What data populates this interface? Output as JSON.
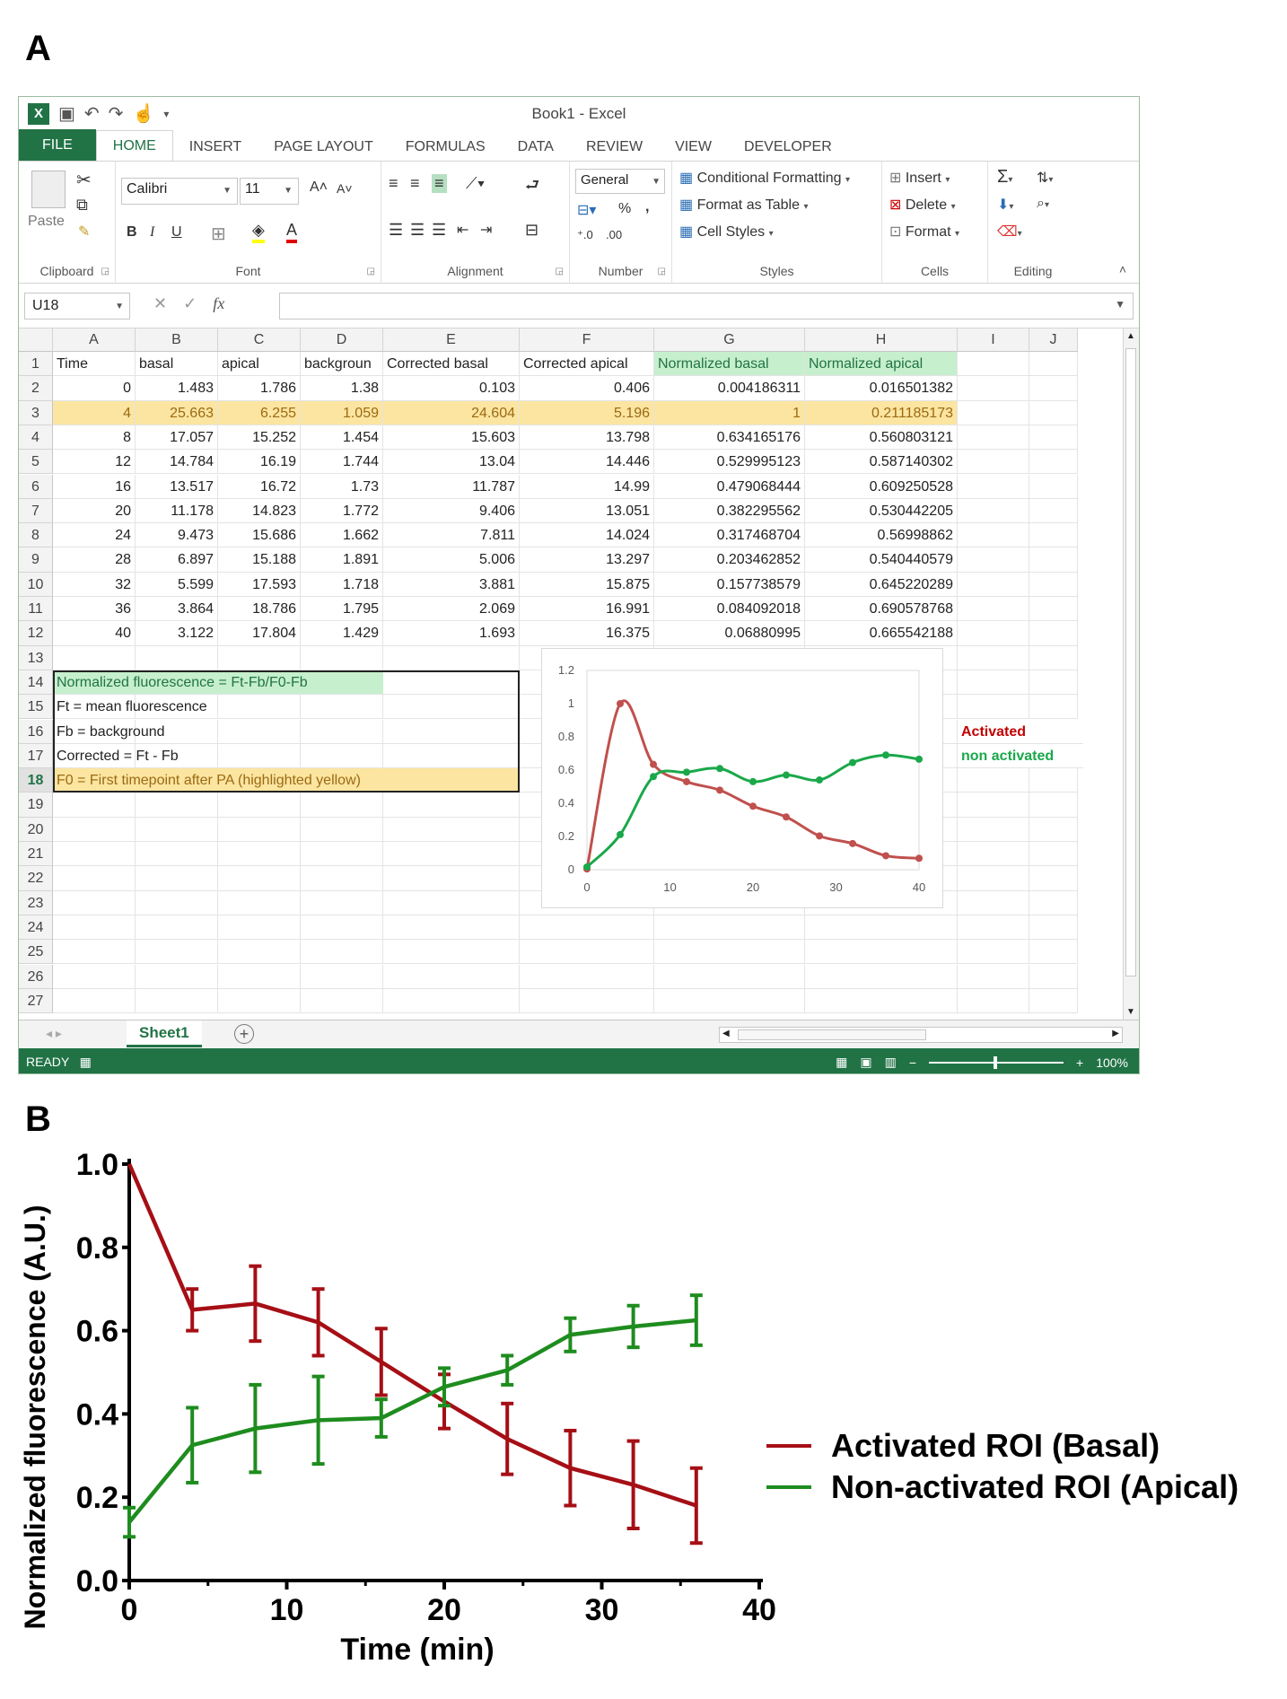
{
  "panel_labels": {
    "a": "A",
    "b": "B"
  },
  "window": {
    "title": "Book1 - Excel",
    "tabs": [
      "FILE",
      "HOME",
      "INSERT",
      "PAGE LAYOUT",
      "FORMULAS",
      "DATA",
      "REVIEW",
      "VIEW",
      "DEVELOPER"
    ],
    "active_tab": "HOME"
  },
  "ribbon": {
    "clipboard": {
      "label": "Clipboard",
      "paste": "Paste"
    },
    "font": {
      "label": "Font",
      "name": "Calibri",
      "size": "11",
      "bold": "B",
      "italic": "I",
      "underline": "U"
    },
    "alignment": {
      "label": "Alignment"
    },
    "number": {
      "label": "Number",
      "format": "General",
      "percent": "%"
    },
    "styles": {
      "label": "Styles",
      "conditional": "Conditional Formatting",
      "format_table": "Format as Table",
      "cell_styles": "Cell Styles"
    },
    "cells": {
      "label": "Cells",
      "insert": "Insert",
      "delete": "Delete",
      "format": "Format"
    },
    "editing": {
      "label": "Editing"
    }
  },
  "formula_bar": {
    "name_box": "U18",
    "fx": "fx",
    "value": ""
  },
  "sheet": {
    "columns": [
      "A",
      "B",
      "C",
      "D",
      "E",
      "F",
      "G",
      "H",
      "I",
      "J"
    ],
    "row_numbers": [
      "1",
      "2",
      "3",
      "4",
      "5",
      "6",
      "7",
      "8",
      "9",
      "10",
      "11",
      "12",
      "13",
      "14",
      "15",
      "16",
      "17",
      "18",
      "19",
      "20",
      "21",
      "22",
      "23",
      "24",
      "25",
      "26",
      "27"
    ],
    "headers": [
      "Time",
      "basal",
      "apical",
      "backgroun",
      "Corrected basal",
      "Corrected apical",
      "Normalized basal",
      "Normalized apical"
    ],
    "rows": [
      [
        "0",
        "1.483",
        "1.786",
        "1.38",
        "0.103",
        "0.406",
        "0.004186311",
        "0.016501382"
      ],
      [
        "4",
        "25.663",
        "6.255",
        "1.059",
        "24.604",
        "5.196",
        "1",
        "0.211185173"
      ],
      [
        "8",
        "17.057",
        "15.252",
        "1.454",
        "15.603",
        "13.798",
        "0.634165176",
        "0.560803121"
      ],
      [
        "12",
        "14.784",
        "16.19",
        "1.744",
        "13.04",
        "14.446",
        "0.529995123",
        "0.587140302"
      ],
      [
        "16",
        "13.517",
        "16.72",
        "1.73",
        "11.787",
        "14.99",
        "0.479068444",
        "0.609250528"
      ],
      [
        "20",
        "11.178",
        "14.823",
        "1.772",
        "9.406",
        "13.051",
        "0.382295562",
        "0.530442205"
      ],
      [
        "24",
        "9.473",
        "15.686",
        "1.662",
        "7.811",
        "14.024",
        "0.317468704",
        "0.56998862"
      ],
      [
        "28",
        "6.897",
        "15.188",
        "1.891",
        "5.006",
        "13.297",
        "0.203462852",
        "0.540440579"
      ],
      [
        "32",
        "5.599",
        "17.593",
        "1.718",
        "3.881",
        "15.875",
        "0.157738579",
        "0.645220289"
      ],
      [
        "36",
        "3.864",
        "18.786",
        "1.795",
        "2.069",
        "16.991",
        "0.084092018",
        "0.690578768"
      ],
      [
        "40",
        "3.122",
        "17.804",
        "1.429",
        "1.693",
        "16.375",
        "0.06880995",
        "0.665542188"
      ]
    ],
    "notes": [
      "Normalized fluorescence = Ft-Fb/F0-Fb",
      "Ft = mean fluorescence",
      "Fb = background",
      "Corrected = Ft - Fb",
      "F0 = First timepoint after PA (highlighted yellow)"
    ],
    "legend_activated": "Activated",
    "legend_non_activated": "non activated",
    "sheet_tab": "Sheet1",
    "status": "READY",
    "zoom": "100%"
  },
  "chart_data": [
    {
      "type": "line",
      "x": [
        0,
        4,
        8,
        12,
        16,
        20,
        24,
        28,
        32,
        36,
        40
      ],
      "series": [
        {
          "values": [
            0.004186311,
            1,
            0.634165176,
            0.529995123,
            0.479068444,
            0.382295562,
            0.317468704,
            0.203462852,
            0.157738579,
            0.084092018,
            0.06880995
          ],
          "color": "#c0504d"
        },
        {
          "values": [
            0.016501382,
            0.211185173,
            0.560803121,
            0.587140302,
            0.609250528,
            0.530442205,
            0.56998862,
            0.540440579,
            0.645220289,
            0.690578768,
            0.665542188
          ],
          "color": "#1aa84a"
        }
      ],
      "xlim": [
        0,
        40
      ],
      "ylim": [
        0,
        1.2
      ],
      "xticks": [
        "0",
        "10",
        "20",
        "30",
        "40"
      ],
      "yticks": [
        "0",
        "0.2",
        "0.4",
        "0.6",
        "0.8",
        "1",
        "1.2"
      ],
      "grid": false
    },
    {
      "type": "line",
      "x": [
        0,
        4,
        8,
        12,
        16,
        20,
        24,
        28,
        32,
        36
      ],
      "series": [
        {
          "name": "Activated ROI (Basal)",
          "color": "#a50f15",
          "values": [
            1.0,
            0.65,
            0.665,
            0.62,
            0.525,
            0.43,
            0.34,
            0.27,
            0.23,
            0.18
          ],
          "errors": [
            0.0,
            0.05,
            0.09,
            0.08,
            0.08,
            0.065,
            0.085,
            0.09,
            0.105,
            0.09
          ]
        },
        {
          "name": "Non-activated ROI (Apical)",
          "color": "#1e8c1e",
          "values": [
            0.14,
            0.325,
            0.365,
            0.385,
            0.39,
            0.465,
            0.505,
            0.59,
            0.61,
            0.625
          ],
          "errors": [
            0.035,
            0.09,
            0.105,
            0.105,
            0.045,
            0.045,
            0.035,
            0.04,
            0.05,
            0.06
          ]
        }
      ],
      "xlabel": "Time (min)",
      "ylabel": "Normalized fluorescence (A.U.)",
      "xlim": [
        0,
        40
      ],
      "ylim": [
        0,
        1.0
      ],
      "xticks": [
        "0",
        "10",
        "20",
        "30",
        "40"
      ],
      "yticks": [
        "0.0",
        "0.2",
        "0.4",
        "0.6",
        "0.8",
        "1.0"
      ],
      "legend": "right",
      "grid": false
    }
  ]
}
